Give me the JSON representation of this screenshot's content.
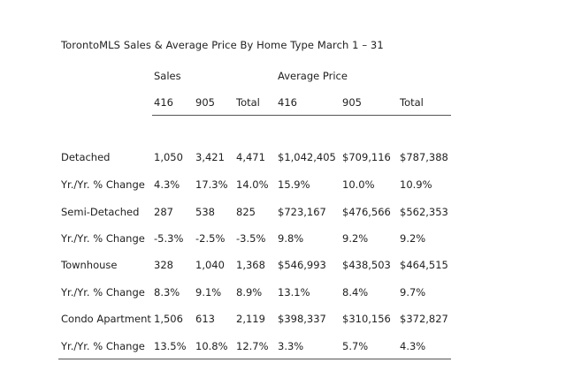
{
  "title": "TorontoMLS Sales & Average Price  By Home Type March 1 – 31",
  "groups": {
    "sales": "Sales",
    "average_price": "Average Price"
  },
  "columns": [
    "416",
    "905",
    "Total",
    "416",
    "905",
    "Total"
  ],
  "rows": [
    {
      "label": "Detached",
      "values": [
        "1,050",
        "3,421",
        "4,471",
        "$1,042,405",
        "$709,116",
        "$787,388"
      ]
    },
    {
      "label": "Yr./Yr. % Change",
      "values": [
        "4.3%",
        "17.3%",
        "14.0%",
        "15.9%",
        "10.0%",
        "10.9%"
      ]
    },
    {
      "label": "Semi-Detached",
      "values": [
        "287",
        "538",
        "825",
        "$723,167",
        "$476,566",
        "$562,353"
      ]
    },
    {
      "label": "Yr./Yr. % Change",
      "values": [
        "-5.3%",
        "-2.5%",
        "-3.5%",
        "9.8%",
        "9.2%",
        "9.2%"
      ]
    },
    {
      "label": "Townhouse",
      "values": [
        "328",
        "1,040",
        "1,368",
        "$546,993",
        "$438,503",
        "$464,515"
      ]
    },
    {
      "label": "Yr./Yr. % Change",
      "values": [
        "8.3%",
        "9.1%",
        "8.9%",
        "13.1%",
        "8.4%",
        "9.7%"
      ]
    },
    {
      "label": "Condo Apartment",
      "values": [
        "1,506",
        "613",
        "2,119",
        "$398,337",
        "$310,156",
        "$372,827"
      ]
    },
    {
      "label": "Yr./Yr. % Change",
      "values": [
        "13.5%",
        "10.8%",
        "12.7%",
        "3.3%",
        "5.7%",
        "4.3%"
      ]
    }
  ]
}
